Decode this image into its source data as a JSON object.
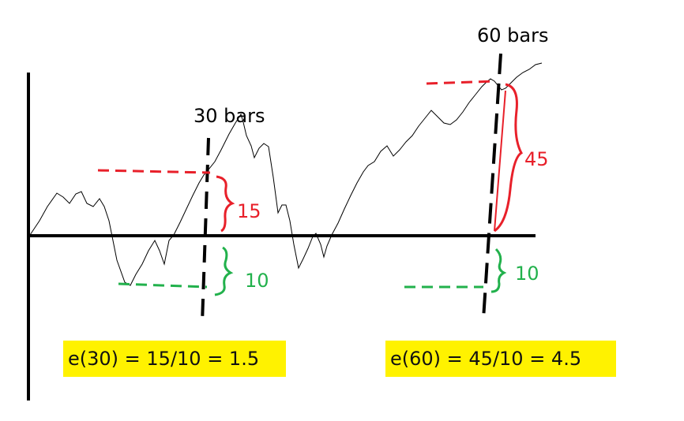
{
  "labels": {
    "bars30": "30 bars",
    "bars60": "60 bars",
    "up30": "15",
    "down30": "10",
    "up60": "45",
    "down60": "10"
  },
  "formulas": {
    "e30": "e(30) = 15/10 = 1.5",
    "e60": "e(60) = 45/10 = 4.5"
  },
  "colors": {
    "red": "#e8202a",
    "green": "#22b14c",
    "highlight": "#fff200",
    "ink": "#000000"
  }
}
